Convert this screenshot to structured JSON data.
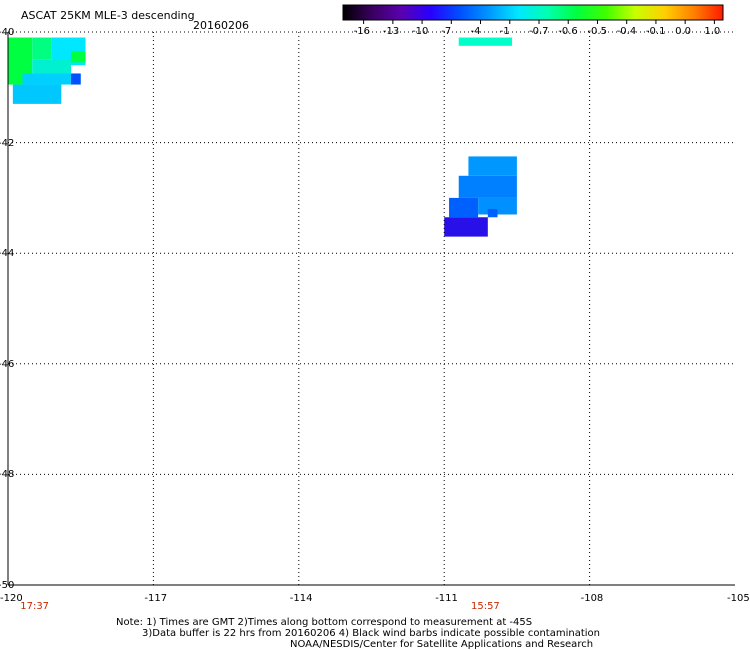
{
  "header": {
    "title": "ASCAT 25KM MLE-3 descending",
    "date": "20160206"
  },
  "colorbar": {
    "ticks": [
      "-16",
      "-13",
      "-10",
      "-7",
      "-4",
      "-1",
      "-0.7",
      "-0.6",
      "-0.5",
      "-0.4",
      "-0.1",
      "0.0",
      "1.0"
    ],
    "colors": [
      "#000000",
      "#3a0060",
      "#5a00b0",
      "#2800ff",
      "#0050ff",
      "#0098ff",
      "#00e8ff",
      "#00ffb0",
      "#00ff40",
      "#40ff00",
      "#c8ff00",
      "#ffd000",
      "#ff8000",
      "#ff1a00"
    ]
  },
  "footer": {
    "note_line1": "Note: 1) Times are GMT 2)Times along bottom correspond to measurement at -45S",
    "note_line2": "3)Data buffer is 22 hrs from 20160206 4) Black wind barbs indicate possible contamination",
    "credit": "NOAA/NESDIS/Center for Satellite Applications and Research"
  },
  "chart_data": {
    "type": "heatmap",
    "title": "ASCAT 25KM MLE-3 descending",
    "xlabel": "",
    "ylabel": "",
    "xlim": [
      -120,
      -105
    ],
    "ylim": [
      -50,
      -40
    ],
    "x_ticks": [
      "-120",
      "-117",
      "-114",
      "-111",
      "-108",
      "-105"
    ],
    "y_ticks": [
      "-40",
      "-42",
      "-44",
      "-46",
      "-48",
      "-50"
    ],
    "grid": true,
    "time_labels": [
      {
        "lon": -119.5,
        "text": "17:37"
      },
      {
        "lon": -110.2,
        "text": "15:57"
      }
    ],
    "cells": [
      {
        "lon": [
          -120.0,
          -119.5
        ],
        "lat": [
          -40.1,
          -40.95
        ],
        "color": "#00ff40",
        "value_bin": "-0.5"
      },
      {
        "lon": [
          -119.5,
          -119.1
        ],
        "lat": [
          -40.1,
          -40.5
        ],
        "color": "#00ff80",
        "value_bin": "-0.6"
      },
      {
        "lon": [
          -119.1,
          -118.4
        ],
        "lat": [
          -40.1,
          -40.6
        ],
        "color": "#00e8ff",
        "value_bin": "-1"
      },
      {
        "lon": [
          -118.7,
          -118.4
        ],
        "lat": [
          -40.35,
          -40.55
        ],
        "color": "#00ff40",
        "value_bin": "-0.5"
      },
      {
        "lon": [
          -119.5,
          -118.7
        ],
        "lat": [
          -40.5,
          -40.75
        ],
        "color": "#00f0d0",
        "value_bin": "-0.7"
      },
      {
        "lon": [
          -119.7,
          -118.5
        ],
        "lat": [
          -40.75,
          -40.95
        ],
        "color": "#00d0ff",
        "value_bin": "-1"
      },
      {
        "lon": [
          -118.7,
          -118.5
        ],
        "lat": [
          -40.75,
          -40.95
        ],
        "color": "#0050ff",
        "value_bin": "-4"
      },
      {
        "lon": [
          -119.9,
          -118.9
        ],
        "lat": [
          -40.95,
          -41.3
        ],
        "color": "#00c8ff",
        "value_bin": "-1"
      },
      {
        "lon": [
          -110.7,
          -109.6
        ],
        "lat": [
          -40.1,
          -40.25
        ],
        "color": "#00ffc8",
        "value_bin": "-0.7"
      },
      {
        "lon": [
          -110.5,
          -109.5
        ],
        "lat": [
          -42.25,
          -42.6
        ],
        "color": "#0098ff",
        "value_bin": "-4"
      },
      {
        "lon": [
          -110.7,
          -109.5
        ],
        "lat": [
          -42.6,
          -43.0
        ],
        "color": "#0080ff",
        "value_bin": "-4"
      },
      {
        "lon": [
          -110.9,
          -110.3
        ],
        "lat": [
          -43.0,
          -43.35
        ],
        "color": "#0060ff",
        "value_bin": "-4"
      },
      {
        "lon": [
          -110.3,
          -109.5
        ],
        "lat": [
          -43.0,
          -43.3
        ],
        "color": "#0090ff",
        "value_bin": "-4"
      },
      {
        "lon": [
          -111.0,
          -110.1
        ],
        "lat": [
          -43.35,
          -43.7
        ],
        "color": "#2a10e8",
        "value_bin": "-7"
      },
      {
        "lon": [
          -110.1,
          -109.9
        ],
        "lat": [
          -43.2,
          -43.35
        ],
        "color": "#0060ff",
        "value_bin": "-4"
      }
    ]
  }
}
